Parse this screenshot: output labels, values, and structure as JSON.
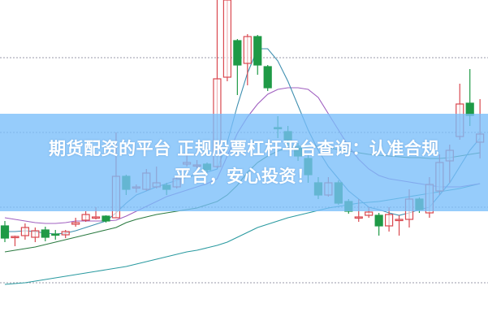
{
  "banner": {
    "line1": "期货配资的平台 正规股票杠杆平台查询：认准合规",
    "line2": "平台，安心投资！",
    "color": "#78befa"
  },
  "chart_data": {
    "type": "candlestick",
    "grid": "horizontal dotted",
    "ylim": [
      0,
      100
    ],
    "grid_levels": [
      82.25,
      59.25,
      36.25,
      13
    ],
    "colors": {
      "up": "#d9484f",
      "down": "#1f9a46",
      "ma5": "#3f8fb0",
      "ma10": "#a060c0",
      "ma20": "#2a7a40",
      "ma60": "#2a9aa0"
    },
    "candles": [
      [
        30.5,
        32,
        25.5,
        26.75
      ],
      [
        27,
        27.5,
        24.25,
        27.25
      ],
      [
        27.5,
        31.25,
        26.25,
        30
      ],
      [
        27,
        30,
        25.5,
        29
      ],
      [
        29.25,
        30.25,
        25.75,
        27
      ],
      [
        28,
        29.25,
        26.25,
        27.75
      ],
      [
        27.75,
        29.25,
        26.75,
        28.75
      ],
      [
        31,
        33,
        30.25,
        31.5
      ],
      [
        32.25,
        35,
        31.75,
        34
      ],
      [
        33.25,
        36.25,
        32.5,
        33.25
      ],
      [
        33.5,
        33.75,
        31.5,
        32
      ],
      [
        33,
        59.25,
        33,
        45.75
      ],
      [
        45.75,
        46.25,
        40,
        41.75
      ],
      [
        42.5,
        43.25,
        40.75,
        42.5
      ],
      [
        41.75,
        48,
        41.25,
        46.75
      ],
      [
        42.5,
        48.75,
        42,
        43.75
      ],
      [
        43,
        43.75,
        40,
        41.75
      ],
      [
        42.5,
        45.75,
        42,
        45
      ],
      [
        49.5,
        52.5,
        48.75,
        50
      ],
      [
        49.25,
        50.75,
        48.25,
        49.25
      ],
      [
        49.5,
        50,
        47,
        47.75
      ],
      [
        48.75,
        100,
        48.25,
        75.75
      ],
      [
        76.25,
        100,
        75,
        100
      ],
      [
        87.5,
        88,
        70.75,
        80
      ],
      [
        80.5,
        89.5,
        73.75,
        88.75
      ],
      [
        88.75,
        89.25,
        77,
        80
      ],
      [
        79.5,
        80,
        72,
        73
      ],
      [
        60.75,
        64.25,
        57.5,
        60.5
      ],
      [
        59.5,
        61.25,
        55,
        57
      ],
      [
        54.5,
        56,
        50.5,
        52
      ],
      [
        51.25,
        52.5,
        43.75,
        46.25
      ],
      [
        43.75,
        45.5,
        38.75,
        40
      ],
      [
        40,
        45.5,
        39.5,
        43.75
      ],
      [
        43.75,
        44.5,
        37,
        37.5
      ],
      [
        38,
        38.75,
        34.25,
        35
      ],
      [
        33.25,
        38.75,
        31.75,
        33.25
      ],
      [
        33.75,
        36.25,
        33,
        34.75
      ],
      [
        33.75,
        34.5,
        27.5,
        30.5
      ],
      [
        30.5,
        36.25,
        28.75,
        34
      ],
      [
        32.5,
        33.75,
        27.5,
        32.5
      ],
      [
        32.5,
        41.75,
        30,
        38.75
      ],
      [
        38.75,
        39.25,
        34.5,
        35.5
      ],
      [
        34.5,
        45.5,
        33,
        43.25
      ],
      [
        41.25,
        52.5,
        40,
        50
      ],
      [
        50.5,
        55.5,
        43.75,
        53.75
      ],
      [
        58,
        74.25,
        57,
        68
      ],
      [
        68.25,
        78.75,
        61.25,
        64.5
      ],
      [
        56.25,
        69.5,
        51.25,
        58.75
      ]
    ],
    "ma5": [
      28.75,
      28.75,
      29,
      28.75,
      28.25,
      28,
      28.25,
      29,
      30,
      31,
      32,
      34.5,
      37.5,
      40,
      41.25,
      42.5,
      43.5,
      44.5,
      45.5,
      46.25,
      47,
      48,
      56.25,
      67.5,
      77.5,
      85,
      85,
      81.25,
      75,
      67.5,
      60,
      53.75,
      48.75,
      45,
      41.25,
      38.75,
      36.25,
      35.5,
      34.5,
      33.75,
      34.5,
      35.5,
      36.25,
      40,
      43.75,
      48.75,
      53.75,
      57.5
    ],
    "ma10": [
      33,
      32.5,
      32,
      31.5,
      31.25,
      31.25,
      31.5,
      32,
      32,
      32,
      32,
      32.25,
      33.5,
      35,
      36.5,
      38,
      39.5,
      40.5,
      41.5,
      42.5,
      43.5,
      45,
      52,
      59,
      64,
      68,
      71,
      72.5,
      73,
      73,
      72.5,
      70,
      65,
      60,
      55,
      51,
      48,
      46,
      45,
      44.5,
      44,
      43.5,
      43,
      42.5,
      42.5,
      42.5,
      43,
      43.5
    ],
    "ma20": [
      22.5,
      23,
      23.5,
      24,
      24.75,
      25.5,
      26.25,
      27,
      27.75,
      28.5,
      29.25,
      30,
      31.5,
      32.5,
      33.25,
      34,
      34.5,
      35,
      35.5,
      36,
      37,
      38,
      40,
      43,
      47,
      50,
      52,
      53.5,
      54.5,
      55,
      55,
      55,
      54.5,
      54,
      53.5,
      53,
      52.5,
      52.25,
      52,
      51.75,
      51.5,
      51.5,
      51.25,
      51.25,
      51.5,
      52,
      52.5,
      53
    ],
    "ma60": [
      12.5,
      12.75,
      13,
      13.5,
      14,
      14.5,
      15,
      15.5,
      16,
      16.5,
      17,
      17.5,
      18,
      18.75,
      19.5,
      20.25,
      21,
      21.75,
      22.5,
      23,
      23.75,
      24.5,
      25.5,
      27,
      28.5,
      30,
      31,
      32,
      33,
      33.75,
      34.5,
      35.25,
      36,
      36.5,
      37,
      37.5,
      37.75,
      38,
      38.5,
      39,
      39.5,
      40,
      40.5,
      41,
      41.5,
      42,
      42.75,
      43.5
    ]
  }
}
